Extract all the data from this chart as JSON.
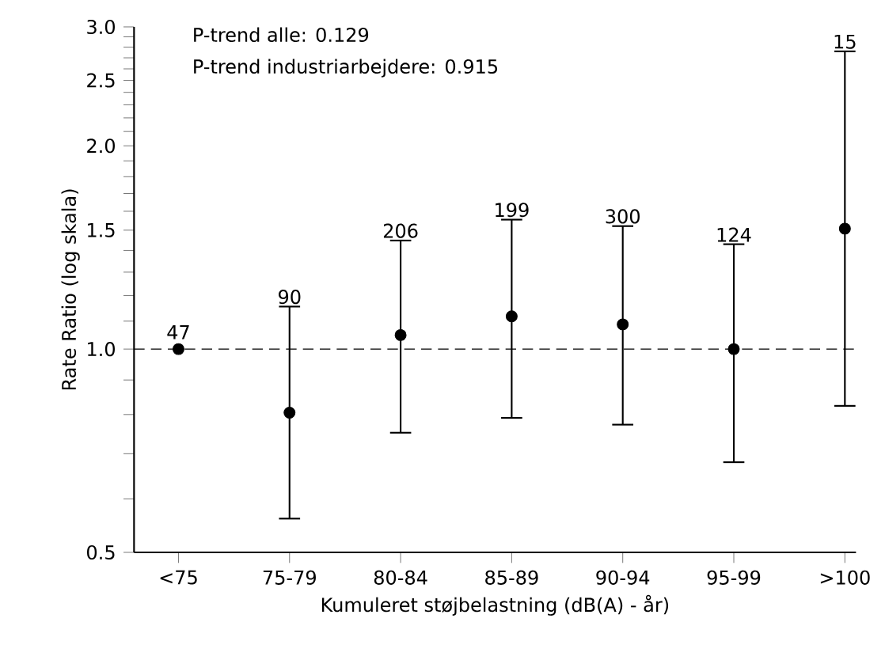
{
  "chart_data": {
    "type": "scatter",
    "xlabel": "Kumuleret støjbelastning (dB(A) - år)",
    "ylabel": "Rate Ratio (log skala)",
    "categories": [
      "<75",
      "75-79",
      "80-84",
      "85-89",
      "90-94",
      "95-99",
      ">100"
    ],
    "series": [
      {
        "color": "#000000",
        "values": [
          1.0,
          0.805,
          1.049,
          1.118,
          1.088,
          1.0,
          1.508
        ],
        "errors": [
          null,
          [
            0.561,
            1.156
          ],
          [
            0.752,
            1.448
          ],
          [
            0.791,
            1.555
          ],
          [
            0.773,
            1.521
          ],
          [
            0.68,
            1.43
          ],
          [
            0.824,
            2.76
          ]
        ]
      }
    ],
    "marker": "circle",
    "log": "y",
    "grid": false,
    "ylim": [
      0.5,
      3.0
    ],
    "yticks": [
      {
        "value": 0.5,
        "label": "0.5"
      },
      {
        "value": 0.6,
        "label": null
      },
      {
        "value": 0.7,
        "label": null
      },
      {
        "value": 0.8,
        "label": null
      },
      {
        "value": 0.9,
        "label": null
      },
      {
        "value": 1.0,
        "label": "1.0"
      },
      {
        "value": 1.1,
        "label": null
      },
      {
        "value": 1.2,
        "label": null
      },
      {
        "value": 1.3,
        "label": null
      },
      {
        "value": 1.4,
        "label": null
      },
      {
        "value": 1.5,
        "label": "1.5"
      },
      {
        "value": 1.6,
        "label": null
      },
      {
        "value": 1.7,
        "label": null
      },
      {
        "value": 1.8,
        "label": null
      },
      {
        "value": 1.9,
        "label": null
      },
      {
        "value": 2.0,
        "label": "2.0"
      },
      {
        "value": 2.1,
        "label": null
      },
      {
        "value": 2.2,
        "label": null
      },
      {
        "value": 2.3,
        "label": null
      },
      {
        "value": 2.4,
        "label": null
      },
      {
        "value": 2.5,
        "label": "2.5"
      },
      {
        "value": 2.6,
        "label": null
      },
      {
        "value": 2.7,
        "label": null
      },
      {
        "value": 2.8,
        "label": null
      },
      {
        "value": 2.9,
        "label": null
      },
      {
        "value": 3.0,
        "label": "3.0"
      }
    ],
    "ref_lines": [
      {
        "axis": "y",
        "value": 1.0,
        "line_style": "dashed",
        "color": "#000000"
      }
    ],
    "annotations": [
      "P-trend alle: 0.129",
      "P-trend industriarbejdere: 0.915",
      {
        "text": "47",
        "x": "<75",
        "y": 1.0
      },
      {
        "text": "90",
        "x": "75-79",
        "y": 1.156
      },
      {
        "text": "206",
        "x": "80-84",
        "y": 1.448
      },
      {
        "text": "199",
        "x": "85-89",
        "y": 1.555
      },
      {
        "text": "300",
        "x": "90-94",
        "y": 1.521
      },
      {
        "text": "124",
        "x": "95-99",
        "y": 1.43
      },
      {
        "text": "15",
        "x": ">100",
        "y": 2.76
      }
    ]
  }
}
